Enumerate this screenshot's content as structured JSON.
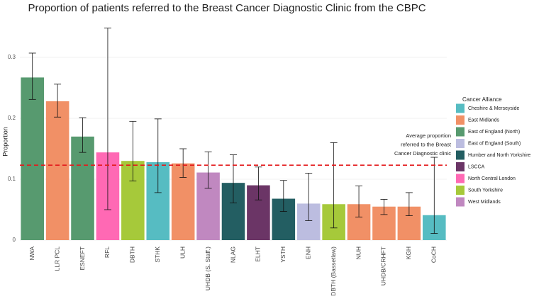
{
  "chart_data": {
    "type": "bar",
    "title": "Proportion of patients referred to the Breast Cancer Diagnostic Clinic from the CBPC",
    "y_label": "Proportion",
    "categories": [
      "NWA",
      "LLR PCL",
      "ESNEFT",
      "RFL",
      "DBTH",
      "STHK",
      "ULH",
      "UHDB (S. Staff.)",
      "NLAG",
      "ELHT",
      "YSTH",
      "ENH",
      "DBTH (Bassetlaw)",
      "NUH",
      "UHDB/CRHFT",
      "KGH",
      "CoCH"
    ],
    "values": [
      0.267,
      0.228,
      0.17,
      0.144,
      0.13,
      0.128,
      0.126,
      0.111,
      0.094,
      0.09,
      0.068,
      0.06,
      0.059,
      0.059,
      0.055,
      0.055,
      0.041
    ],
    "error_low": [
      0.231,
      0.202,
      0.144,
      0.05,
      0.097,
      0.078,
      0.103,
      0.085,
      0.061,
      0.066,
      0.047,
      0.032,
      0.02,
      0.038,
      0.042,
      0.04,
      0.011
    ],
    "error_high": [
      0.307,
      0.256,
      0.201,
      0.348,
      0.195,
      0.199,
      0.15,
      0.145,
      0.14,
      0.12,
      0.098,
      0.11,
      0.16,
      0.089,
      0.067,
      0.078,
      0.136
    ],
    "alliances": [
      "East of England (North)",
      "East Midlands",
      "East of England (North)",
      "North Central London",
      "South Yorkshire",
      "Cheshire & Merseyside",
      "East Midlands",
      "West Midlands",
      "Humber and North Yorkshire",
      "LSCCA",
      "Humber and North Yorkshire",
      "East of England (South)",
      "South Yorkshire",
      "East Midlands",
      "East Midlands",
      "East Midlands",
      "Cheshire & Merseyside"
    ],
    "legend": {
      "title": "Cancer Alliance",
      "position": "right",
      "entries": [
        {
          "name": "Cheshire & Merseyside",
          "color": "#56bcc2"
        },
        {
          "name": "East Midlands",
          "color": "#f19066"
        },
        {
          "name": "East of England (North)",
          "color": "#579a6f"
        },
        {
          "name": "East of England (South)",
          "color": "#bcbde0"
        },
        {
          "name": "Humber and North Yorkshire",
          "color": "#235e62"
        },
        {
          "name": "LSCCA",
          "color": "#6b3566"
        },
        {
          "name": "North Central London",
          "color": "#ff69b4"
        },
        {
          "name": "South Yorkshire",
          "color": "#a6c93a"
        },
        {
          "name": "West Midlands",
          "color": "#c088c0"
        }
      ]
    },
    "average": 0.123,
    "average_color": "#e41a1c",
    "annotation": [
      "Average proportion",
      "referred to the Breast",
      "Cancer Diagnostic clinic"
    ],
    "ylim": [
      0,
      0.35
    ],
    "yticks": [
      0.0,
      0.1,
      0.2,
      0.3
    ],
    "grid": true
  }
}
